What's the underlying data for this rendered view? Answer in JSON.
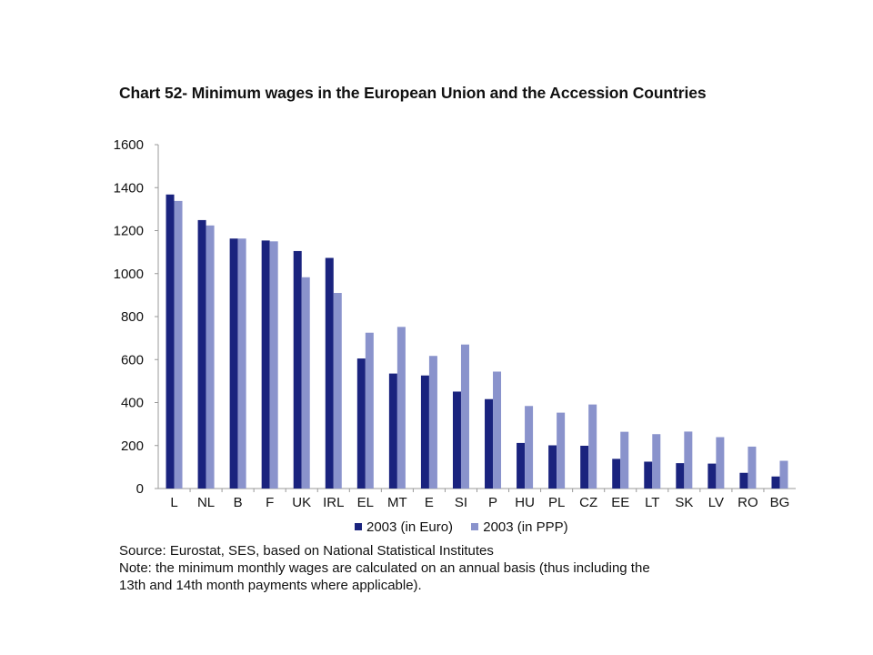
{
  "chart_data": {
    "type": "bar",
    "title": "Chart 52- Minimum wages in the European Union and the Accession Countries",
    "categories": [
      "L",
      "NL",
      "B",
      "F",
      "UK",
      "IRL",
      "EL",
      "MT",
      "E",
      "SI",
      "P",
      "HU",
      "PL",
      "CZ",
      "EE",
      "LT",
      "SK",
      "LV",
      "RO",
      "BG"
    ],
    "series": [
      {
        "name": "2003 (in Euro)",
        "color": "#1a237e",
        "values": [
          1368,
          1249,
          1163,
          1154,
          1105,
          1073,
          605,
          535,
          526,
          451,
          416,
          212,
          201,
          199,
          138,
          125,
          118,
          116,
          73,
          56
        ]
      },
      {
        "name": "2003 (in PPP)",
        "color": "#8a93cc",
        "values": [
          1338,
          1224,
          1163,
          1150,
          983,
          910,
          725,
          752,
          617,
          670,
          544,
          384,
          353,
          391,
          264,
          253,
          265,
          239,
          195,
          129
        ]
      }
    ],
    "yticks": [
      0,
      200,
      400,
      600,
      800,
      1000,
      1200,
      1400,
      1600
    ],
    "ylim": [
      0,
      1600
    ],
    "grid": false,
    "legend_position": "bottom"
  },
  "legend": {
    "items": [
      {
        "label": "2003 (in Euro)",
        "color": "#1a237e"
      },
      {
        "label": "2003 (in PPP)",
        "color": "#8a93cc"
      }
    ]
  },
  "notes": {
    "source": "Source: Eurostat, SES, based on National Statistical Institutes",
    "note_line1": "Note: the minimum monthly wages are calculated on an annual basis (thus including the",
    "note_line2": "13th and 14th month payments where applicable)."
  }
}
